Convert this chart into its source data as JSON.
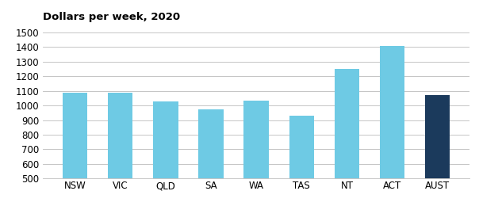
{
  "categories": [
    "NSW",
    "VIC",
    "QLD",
    "SA",
    "WA",
    "TAS",
    "NT",
    "ACT",
    "AUST"
  ],
  "values": [
    1085,
    1085,
    1030,
    975,
    1035,
    930,
    1250,
    1410,
    1070
  ],
  "bar_colors": [
    "#6ecae4",
    "#6ecae4",
    "#6ecae4",
    "#6ecae4",
    "#6ecae4",
    "#6ecae4",
    "#6ecae4",
    "#6ecae4",
    "#1b3a5c"
  ],
  "title": "Dollars per week, 2020",
  "ylim": [
    500,
    1550
  ],
  "yticks": [
    500,
    600,
    700,
    800,
    900,
    1000,
    1100,
    1200,
    1300,
    1400,
    1500
  ],
  "title_fontsize": 9.5,
  "tick_fontsize": 8.5,
  "background_color": "#ffffff",
  "grid_color": "#bbbbbb",
  "bar_width": 0.55
}
